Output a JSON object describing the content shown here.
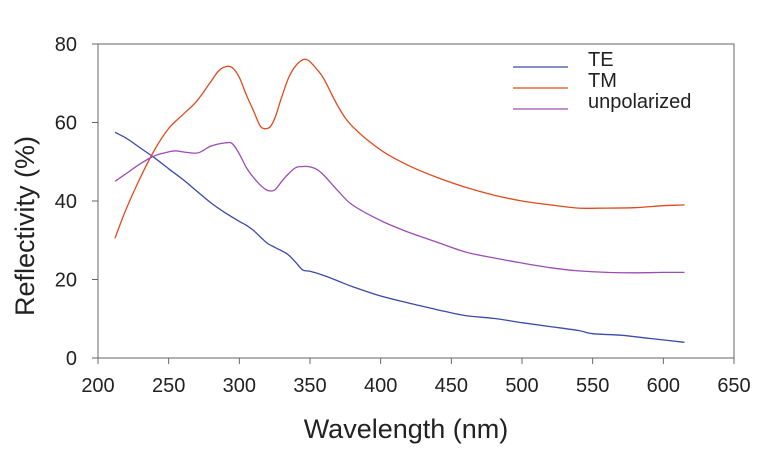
{
  "chart_data": {
    "type": "line",
    "title": "",
    "xlabel": "Wavelength (nm)",
    "ylabel": "Reflectivity (%)",
    "xlim": [
      200,
      650
    ],
    "ylim": [
      0,
      80
    ],
    "xticks": [
      200,
      250,
      300,
      350,
      400,
      450,
      500,
      550,
      600,
      650
    ],
    "yticks": [
      0,
      20,
      40,
      60,
      80
    ],
    "grid": false,
    "legend_position": "top-right",
    "series": [
      {
        "name": "TE",
        "color": "#3b4aa8",
        "x": [
          212,
          220,
          230,
          240,
          250,
          260,
          270,
          280,
          290,
          300,
          305,
          310,
          315,
          320,
          325,
          330,
          335,
          340,
          345,
          350,
          360,
          370,
          380,
          400,
          420,
          440,
          460,
          480,
          500,
          520,
          540,
          550,
          570,
          590,
          615
        ],
        "y": [
          57.5,
          56,
          53.5,
          51,
          48.2,
          45.5,
          42.5,
          39.5,
          37,
          34.8,
          33.8,
          32.5,
          30.8,
          29.2,
          28.2,
          27.3,
          26.2,
          24.3,
          22.4,
          22.1,
          21,
          19.6,
          18.2,
          15.8,
          14,
          12.3,
          10.8,
          10.1,
          9.0,
          8.0,
          7.0,
          6.2,
          5.8,
          5.0,
          4.0
        ]
      },
      {
        "name": "TM",
        "color": "#e04a1f",
        "x": [
          212,
          220,
          230,
          240,
          250,
          260,
          270,
          280,
          285,
          290,
          295,
          300,
          305,
          310,
          315,
          320,
          323,
          326,
          330,
          335,
          340,
          345,
          348,
          350,
          355,
          360,
          370,
          380,
          400,
          420,
          440,
          460,
          480,
          500,
          520,
          540,
          560,
          580,
          600,
          615
        ],
        "y": [
          30.5,
          38,
          46,
          53,
          58.5,
          62,
          65.5,
          70.5,
          73,
          74.2,
          74,
          71.5,
          67,
          63,
          59,
          58.5,
          59.5,
          62,
          66.5,
          71.5,
          74.5,
          76,
          76,
          75.5,
          73.5,
          71,
          64,
          59,
          53,
          49,
          46,
          43.5,
          41.5,
          40,
          39,
          38.2,
          38.2,
          38.3,
          38.8,
          39
        ]
      },
      {
        "name": "unpolarized",
        "color": "#9a4db3",
        "x": [
          212,
          220,
          230,
          240,
          250,
          255,
          260,
          270,
          275,
          280,
          290,
          295,
          300,
          305,
          310,
          315,
          320,
          325,
          330,
          335,
          340,
          345,
          350,
          355,
          360,
          370,
          380,
          400,
          420,
          440,
          460,
          480,
          500,
          520,
          540,
          560,
          580,
          600,
          615
        ],
        "y": [
          45,
          47,
          49.5,
          51.5,
          52.5,
          52.8,
          52.5,
          52.2,
          53,
          54,
          54.8,
          54.6,
          52,
          48.5,
          46,
          44,
          42.7,
          42.8,
          45,
          47,
          48.5,
          48.8,
          48.7,
          48,
          46.5,
          42.5,
          39,
          35,
          32,
          29.5,
          27,
          25.5,
          24.2,
          23,
          22.2,
          21.8,
          21.7,
          21.8,
          21.8
        ]
      }
    ]
  }
}
